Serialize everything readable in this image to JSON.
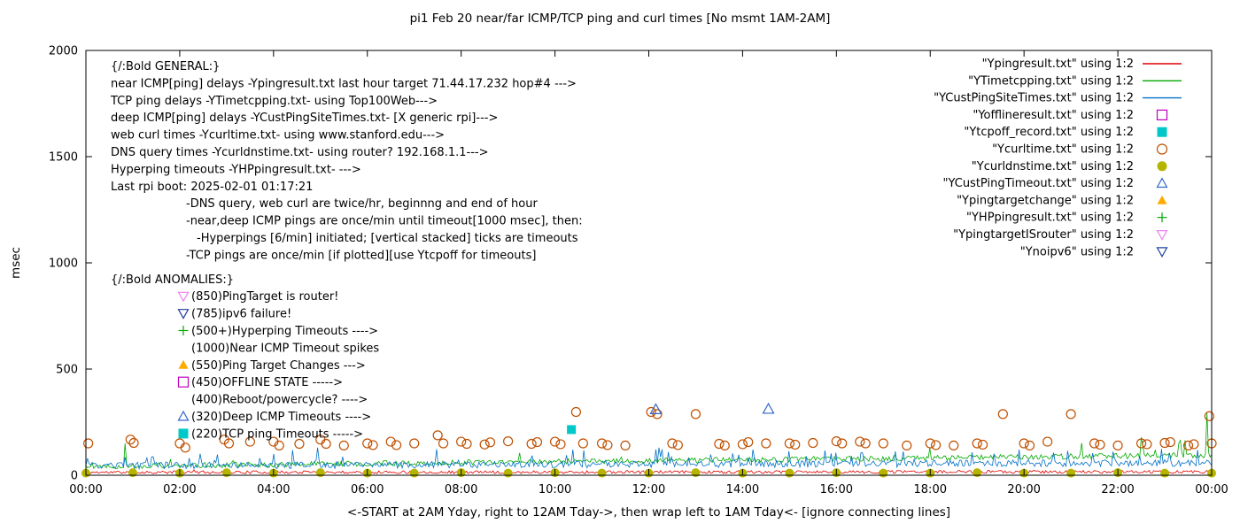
{
  "title": "pi1 Feb 20  near/far ICMP/TCP ping and curl times [No msmt 1AM-2AM]",
  "ylabel": "msec",
  "xlabel": "<-START at 2AM Yday, right to 12AM Tday->, then wrap left to 1AM Tday<- [ignore connecting lines]",
  "chart_data": {
    "type": "line",
    "ylim": [
      0,
      2000
    ],
    "y_ticks": [
      0,
      500,
      1000,
      1500,
      2000
    ],
    "x_range_hours": [
      0,
      24
    ],
    "x_ticks": [
      "00:00",
      "02:00",
      "04:00",
      "06:00",
      "08:00",
      "10:00",
      "12:00",
      "14:00",
      "16:00",
      "18:00",
      "20:00",
      "22:00",
      "00:00"
    ],
    "grid": false,
    "legend_position": "top-right-inside",
    "legend": [
      {
        "label": "\"Ypingresult.txt\" using 1:2",
        "marker": "line",
        "color": "#dd0000"
      },
      {
        "label": "\"YTimetcpping.txt\" using 1:2",
        "marker": "line",
        "color": "#00a800"
      },
      {
        "label": "\"YCustPingSiteTimes.txt\" using 1:2",
        "marker": "line",
        "color": "#0070c8"
      },
      {
        "label": "\"Yofflineresult.txt\" using 1:2",
        "marker": "open-square",
        "color": "#c000c0"
      },
      {
        "label": "\"Ytcpoff_record.txt\" using 1:2",
        "marker": "filled-square",
        "color": "#00c8c8"
      },
      {
        "label": "\"Ycurltime.txt\" using 1:2",
        "marker": "open-circle",
        "color": "#c05000"
      },
      {
        "label": "\"Ycurldnstime.txt\" using 1:2",
        "marker": "filled-circle",
        "color": "#b5b500"
      },
      {
        "label": "\"YCustPingTimeout.txt\" using 1:2",
        "marker": "open-triangle-up",
        "color": "#3366cc"
      },
      {
        "label": "\"Ypingtargetchange\" using 1:2",
        "marker": "filled-triangle-up",
        "color": "#ffaa00"
      },
      {
        "label": "\"YHPpingresult.txt\" using 1:2",
        "marker": "plus",
        "color": "#00a800"
      },
      {
        "label": "\"YpingtargetISrouter\" using 1:2",
        "marker": "open-triangle-down",
        "color": "#ee82ee"
      },
      {
        "label": "\"Ynoipv6\" using 1:2",
        "marker": "open-triangle-down",
        "color": "#2040a0"
      }
    ],
    "lines": [
      {
        "name": "Ypingresult.txt",
        "color": "#dd0000",
        "base_start": 14,
        "base_end": 16,
        "noise": 7,
        "spike_prob": 0.003,
        "spike_max": 20,
        "points": 720,
        "seed": 11,
        "spikes": []
      },
      {
        "name": "YTimetcpping.txt",
        "color": "#00a800",
        "base_start": 42,
        "base_end": 95,
        "noise": 13,
        "spike_prob": 0.02,
        "spike_max": 80,
        "points": 720,
        "seed": 22,
        "spikes": [
          {
            "h": 0.85,
            "v": 150
          },
          {
            "h": 23.3,
            "v": 150
          },
          {
            "h": 23.9,
            "v": 292
          }
        ]
      },
      {
        "name": "YCustPingSiteTimes.txt",
        "color": "#0070c8",
        "base_start": 45,
        "base_end": 58,
        "noise": 16,
        "spike_prob": 0.08,
        "spike_max": 70,
        "points": 720,
        "seed": 33,
        "spikes": []
      }
    ],
    "scatter": [
      {
        "name": "Ycurltime.txt",
        "marker": "open-circle",
        "color": "#c05000",
        "size": 5,
        "points": [
          [
            0.05,
            150
          ],
          [
            0.95,
            168
          ],
          [
            1.02,
            152
          ],
          [
            2.0,
            150
          ],
          [
            2.12,
            130
          ],
          [
            2.95,
            168
          ],
          [
            3.05,
            150
          ],
          [
            3.5,
            158
          ],
          [
            4.0,
            158
          ],
          [
            4.12,
            140
          ],
          [
            4.55,
            148
          ],
          [
            5.0,
            168
          ],
          [
            5.12,
            148
          ],
          [
            5.5,
            140
          ],
          [
            6.0,
            150
          ],
          [
            6.12,
            142
          ],
          [
            6.5,
            158
          ],
          [
            6.62,
            142
          ],
          [
            7.0,
            150
          ],
          [
            7.5,
            188
          ],
          [
            7.62,
            150
          ],
          [
            8.0,
            158
          ],
          [
            8.12,
            148
          ],
          [
            8.5,
            145
          ],
          [
            8.62,
            155
          ],
          [
            9.0,
            160
          ],
          [
            9.5,
            148
          ],
          [
            9.62,
            156
          ],
          [
            10.0,
            158
          ],
          [
            10.12,
            146
          ],
          [
            10.45,
            298
          ],
          [
            10.6,
            150
          ],
          [
            11.0,
            150
          ],
          [
            11.12,
            142
          ],
          [
            11.5,
            140
          ],
          [
            12.05,
            298
          ],
          [
            12.18,
            288
          ],
          [
            12.5,
            150
          ],
          [
            12.62,
            142
          ],
          [
            13.0,
            288
          ],
          [
            13.5,
            148
          ],
          [
            13.62,
            140
          ],
          [
            14.0,
            146
          ],
          [
            14.12,
            156
          ],
          [
            14.5,
            150
          ],
          [
            15.0,
            150
          ],
          [
            15.12,
            144
          ],
          [
            15.5,
            152
          ],
          [
            16.0,
            160
          ],
          [
            16.12,
            150
          ],
          [
            16.5,
            158
          ],
          [
            16.62,
            150
          ],
          [
            17.0,
            150
          ],
          [
            17.5,
            140
          ],
          [
            18.0,
            150
          ],
          [
            18.12,
            142
          ],
          [
            18.5,
            140
          ],
          [
            19.0,
            150
          ],
          [
            19.12,
            144
          ],
          [
            19.55,
            288
          ],
          [
            20.0,
            150
          ],
          [
            20.12,
            140
          ],
          [
            20.5,
            158
          ],
          [
            21.0,
            288
          ],
          [
            21.5,
            150
          ],
          [
            21.62,
            144
          ],
          [
            22.0,
            140
          ],
          [
            22.5,
            150
          ],
          [
            22.62,
            146
          ],
          [
            23.0,
            152
          ],
          [
            23.12,
            156
          ],
          [
            23.5,
            140
          ],
          [
            23.62,
            146
          ],
          [
            23.95,
            278
          ],
          [
            24.0,
            150
          ]
        ]
      },
      {
        "name": "Ycurldnstime.txt",
        "marker": "filled-circle",
        "color": "#b5b500",
        "size": 5,
        "points": [
          [
            0,
            10
          ],
          [
            1,
            12
          ],
          [
            2,
            10
          ],
          [
            3,
            12
          ],
          [
            4,
            10
          ],
          [
            5,
            12
          ],
          [
            6,
            10
          ],
          [
            7,
            10
          ],
          [
            8,
            12
          ],
          [
            9,
            10
          ],
          [
            10,
            12
          ],
          [
            11,
            10
          ],
          [
            12,
            10
          ],
          [
            13,
            12
          ],
          [
            14,
            10
          ],
          [
            15,
            10
          ],
          [
            16,
            12
          ],
          [
            17,
            10
          ],
          [
            18,
            10
          ],
          [
            19,
            12
          ],
          [
            20,
            10
          ],
          [
            21,
            10
          ],
          [
            22,
            12
          ],
          [
            23,
            10
          ],
          [
            24,
            10
          ]
        ]
      },
      {
        "name": "YCustPingTimeout.txt",
        "marker": "open-triangle-up",
        "color": "#3366cc",
        "size": 6,
        "points": [
          [
            12.15,
            310
          ],
          [
            14.55,
            312
          ]
        ]
      },
      {
        "name": "Ytcpoff_record.txt",
        "marker": "filled-square",
        "color": "#00c8c8",
        "size": 5,
        "points": [
          [
            10.35,
            215
          ]
        ]
      }
    ],
    "annotations": {
      "general_heading": "{/:Bold GENERAL:}",
      "general_lines": [
        "near ICMP[ping] delays -Ypingresult.txt last hour target 71.44.17.232 hop#4 --->",
        "TCP ping delays -YTimetcpping.txt- using Top100Web--->",
        "deep ICMP[ping] delays -YCustPingSiteTimes.txt- [X generic rpi]--->",
        "web curl times -Ycurltime.txt- using www.stanford.edu--->",
        "DNS query times -Ycurldnstime.txt- using router? 192.168.1.1--->",
        "Hyperping timeouts -YHPpingresult.txt- --->",
        "Last rpi boot: 2025-02-01 01:17:21"
      ],
      "notes": [
        {
          "text": "-DNS query, web curl are twice/hr, beginnng and end of hour",
          "indent": 1
        },
        {
          "text": "-near,deep ICMP pings are once/min until timeout[1000 msec], then:",
          "indent": 1
        },
        {
          "text": "-Hyperpings [6/min] initiated; [vertical stacked] ticks are timeouts",
          "indent": 2
        },
        {
          "text": "-TCP pings are once/min [if plotted][use Ytcpoff for timeouts]",
          "indent": 1
        }
      ],
      "anomalies_heading": "{/:Bold ANOMALIES:}",
      "anomalies": [
        {
          "marker": "open-triangle-down",
          "color": "#ee82ee",
          "text": "(850)PingTarget is router!"
        },
        {
          "marker": "open-triangle-down",
          "color": "#2040a0",
          "text": "(785)ipv6 failure!"
        },
        {
          "marker": "plus",
          "color": "#00a800",
          "text": "(500+)Hyperping Timeouts ---->"
        },
        {
          "marker": null,
          "color": null,
          "text": "(1000)Near ICMP Timeout spikes"
        },
        {
          "marker": "filled-triangle-up",
          "color": "#ffaa00",
          "text": "(550)Ping Target Changes --->"
        },
        {
          "marker": "open-square",
          "color": "#c000c0",
          "text": "(450)OFFLINE STATE ----->"
        },
        {
          "marker": null,
          "color": null,
          "text": "(400)Reboot/powercycle? ---->"
        },
        {
          "marker": "open-triangle-up",
          "color": "#3366cc",
          "text": "(320)Deep ICMP Timeouts ---->"
        },
        {
          "marker": "filled-square",
          "color": "#00c8c8",
          "text": "(220)TCP ping Timeouts ----->"
        }
      ]
    }
  }
}
